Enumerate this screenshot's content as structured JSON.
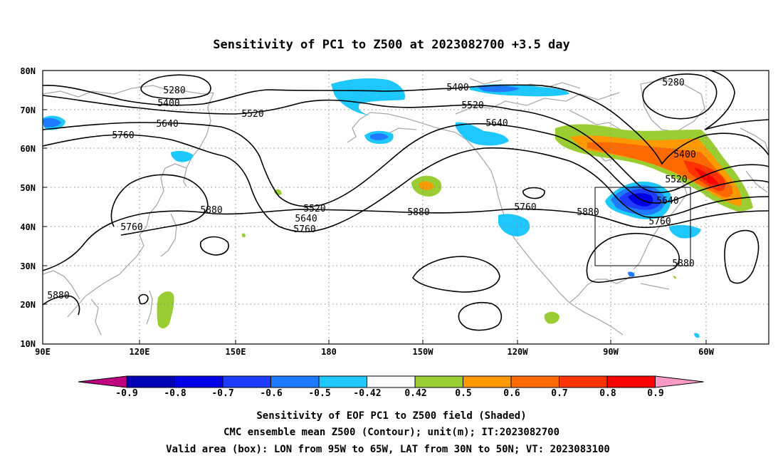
{
  "title": "Sensitivity of PC1 to Z500 at 2023082700 +3.5 day",
  "lat_ticks": [
    "80N",
    "70N",
    "60N",
    "50N",
    "40N",
    "30N",
    "20N",
    "10N"
  ],
  "lon_ticks": [
    "90E",
    "120E",
    "150E",
    "180",
    "150W",
    "120W",
    "90W",
    "60W"
  ],
  "contour_labels": [
    "5280",
    "5400",
    "5520",
    "5640",
    "5760",
    "5880",
    "5400",
    "5520",
    "5640",
    "5520",
    "5640",
    "5760",
    "5880",
    "5760",
    "5880",
    "5400",
    "5280",
    "5400",
    "5520",
    "5640",
    "5760",
    "5880",
    "5760",
    "5880"
  ],
  "colorbar": {
    "labels": [
      "-0.9",
      "-0.8",
      "-0.7",
      "-0.6",
      "-0.5",
      "-0.42",
      "0.42",
      "0.5",
      "0.6",
      "0.7",
      "0.8",
      "0.9"
    ],
    "colors": [
      "#c0007f",
      "#0000b4",
      "#0000e6",
      "#1e3cff",
      "#1e7bff",
      "#1ec8ff",
      "#ffffff",
      "#9acd32",
      "#ff9900",
      "#ff6a00",
      "#ff3300",
      "#ff0000",
      "#ff99c8"
    ]
  },
  "footer": {
    "line1": "Sensitivity of EOF PC1 to Z500 field (Shaded)",
    "line2": "CMC ensemble mean Z500 (Contour); unit(m); IT:2023082700",
    "line3": "Valid area (box): LON from 95W to 65W, LAT from 30N to 50N; VT: 2023083100"
  },
  "valid_area": {
    "lon_from": "95W",
    "lon_to": "65W",
    "lat_from": "30N",
    "lat_to": "50N"
  }
}
